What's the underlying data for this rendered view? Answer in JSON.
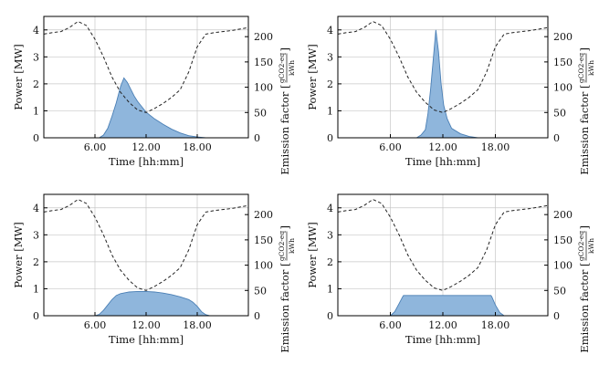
{
  "chart_data": [
    {
      "type": "area",
      "xlabel": "Time [hh:mm]",
      "ylabel": "Power [MW]",
      "y2label": "Emission factor",
      "y2unit_num": "gCO2-eq",
      "y2unit_den": "kWh",
      "xlim": [
        0,
        24
      ],
      "ylim": [
        0,
        4.5
      ],
      "y2lim": [
        0,
        240
      ],
      "xticks": [
        6,
        12,
        18
      ],
      "xticklabels": [
        "6.00",
        "12.00",
        "18.00"
      ],
      "yticks": [
        0,
        1,
        2,
        3,
        4
      ],
      "yticklabels": [
        "0",
        "1",
        "2",
        "3",
        "4"
      ],
      "y2ticks": [
        0,
        50,
        100,
        150,
        200
      ],
      "y2ticklabels": [
        "0",
        "50",
        "100",
        "150",
        "200"
      ],
      "series": [
        {
          "name": "Power",
          "x": [
            6.5,
            7,
            7.5,
            8,
            8.5,
            9,
            9.4,
            9.8,
            10.2,
            10.6,
            11,
            11.5,
            12,
            13,
            14,
            15,
            16,
            17,
            18,
            19
          ],
          "values": [
            0,
            0.1,
            0.35,
            0.8,
            1.3,
            1.9,
            2.22,
            2.05,
            1.8,
            1.55,
            1.35,
            1.15,
            0.95,
            0.7,
            0.5,
            0.32,
            0.18,
            0.08,
            0.03,
            0
          ]
        },
        {
          "name": "Emission factor",
          "x": [
            0,
            1,
            2,
            3,
            4,
            5,
            6,
            7,
            8,
            9,
            10,
            11,
            12,
            13,
            14,
            15,
            16,
            17,
            18,
            19,
            20,
            21,
            22,
            23,
            24
          ],
          "values": [
            205,
            208,
            210,
            218,
            230,
            222,
            195,
            160,
            120,
            90,
            70,
            55,
            50,
            58,
            68,
            80,
            95,
            130,
            180,
            205,
            208,
            210,
            212,
            215,
            218
          ]
        }
      ]
    },
    {
      "type": "area",
      "xlabel": "Time [hh:mm]",
      "ylabel": "Power [MW]",
      "y2label": "Emission factor",
      "y2unit_num": "gCO2-eq",
      "y2unit_den": "kWh",
      "xlim": [
        0,
        24
      ],
      "ylim": [
        0,
        4.5
      ],
      "y2lim": [
        0,
        240
      ],
      "xticks": [
        6,
        12,
        18
      ],
      "xticklabels": [
        "6.00",
        "12.00",
        "18.00"
      ],
      "yticks": [
        0,
        1,
        2,
        3,
        4
      ],
      "yticklabels": [
        "0",
        "1",
        "2",
        "3",
        "4"
      ],
      "y2ticks": [
        0,
        50,
        100,
        150,
        200
      ],
      "y2ticklabels": [
        "0",
        "50",
        "100",
        "150",
        "200"
      ],
      "series": [
        {
          "name": "Power",
          "x": [
            9,
            9.5,
            10,
            10.3,
            10.6,
            10.9,
            11.2,
            11.5,
            11.8,
            12.1,
            12.5,
            13,
            14,
            15,
            16
          ],
          "values": [
            0,
            0.1,
            0.3,
            0.9,
            1.8,
            2.9,
            4.0,
            3.2,
            2.0,
            1.2,
            0.7,
            0.35,
            0.15,
            0.05,
            0
          ]
        },
        {
          "name": "Emission factor",
          "x": [
            0,
            1,
            2,
            3,
            4,
            5,
            6,
            7,
            8,
            9,
            10,
            11,
            12,
            13,
            14,
            15,
            16,
            17,
            18,
            19,
            20,
            21,
            22,
            23,
            24
          ],
          "values": [
            205,
            208,
            210,
            218,
            230,
            222,
            195,
            160,
            120,
            90,
            70,
            55,
            50,
            58,
            68,
            80,
            95,
            130,
            180,
            205,
            208,
            210,
            212,
            215,
            218
          ]
        }
      ]
    },
    {
      "type": "area",
      "xlabel": "Time [hh:mm]",
      "ylabel": "Power [MW]",
      "y2label": "Emission factor",
      "y2unit_num": "gCO2-eq",
      "y2unit_den": "kWh",
      "xlim": [
        0,
        24
      ],
      "ylim": [
        0,
        4.5
      ],
      "y2lim": [
        0,
        240
      ],
      "xticks": [
        6,
        12,
        18
      ],
      "xticklabels": [
        "6.00",
        "12.00",
        "18.00"
      ],
      "yticks": [
        0,
        1,
        2,
        3,
        4
      ],
      "yticklabels": [
        "0",
        "1",
        "2",
        "3",
        "4"
      ],
      "y2ticks": [
        0,
        50,
        100,
        150,
        200
      ],
      "y2ticklabels": [
        "0",
        "50",
        "100",
        "150",
        "200"
      ],
      "series": [
        {
          "name": "Power",
          "x": [
            6,
            6.5,
            7,
            7.5,
            8,
            8.5,
            9,
            10,
            11,
            12,
            13,
            14,
            15,
            16,
            17,
            17.5,
            18,
            18.5,
            19,
            19.5
          ],
          "values": [
            0,
            0.05,
            0.2,
            0.4,
            0.6,
            0.75,
            0.82,
            0.88,
            0.9,
            0.9,
            0.88,
            0.84,
            0.78,
            0.7,
            0.6,
            0.5,
            0.35,
            0.15,
            0.04,
            0
          ]
        },
        {
          "name": "Emission factor",
          "x": [
            0,
            1,
            2,
            3,
            4,
            5,
            6,
            7,
            8,
            9,
            10,
            11,
            12,
            13,
            14,
            15,
            16,
            17,
            18,
            19,
            20,
            21,
            22,
            23,
            24
          ],
          "values": [
            205,
            208,
            210,
            218,
            230,
            222,
            195,
            160,
            120,
            90,
            70,
            55,
            50,
            58,
            68,
            80,
            95,
            130,
            180,
            205,
            208,
            210,
            212,
            215,
            218
          ]
        }
      ]
    },
    {
      "type": "area",
      "xlabel": "Time [hh:mm]",
      "ylabel": "Power [MW]",
      "y2label": "Emission factor",
      "y2unit_num": "gCO2-eq",
      "y2unit_den": "kWh",
      "xlim": [
        0,
        24
      ],
      "ylim": [
        0,
        4.5
      ],
      "y2lim": [
        0,
        240
      ],
      "xticks": [
        6,
        12,
        18
      ],
      "xticklabels": [
        "6.00",
        "12.00",
        "18.00"
      ],
      "yticks": [
        0,
        1,
        2,
        3,
        4
      ],
      "yticklabels": [
        "0",
        "1",
        "2",
        "3",
        "4"
      ],
      "y2ticks": [
        0,
        50,
        100,
        150,
        200
      ],
      "y2ticklabels": [
        "0",
        "50",
        "100",
        "150",
        "200"
      ],
      "series": [
        {
          "name": "Power",
          "x": [
            6,
            6.5,
            7,
            7.4,
            7.5,
            17.5,
            17.6,
            18,
            18.5,
            19
          ],
          "values": [
            0,
            0.15,
            0.45,
            0.7,
            0.75,
            0.75,
            0.7,
            0.4,
            0.12,
            0
          ]
        },
        {
          "name": "Emission factor",
          "x": [
            0,
            1,
            2,
            3,
            4,
            5,
            6,
            7,
            8,
            9,
            10,
            11,
            12,
            13,
            14,
            15,
            16,
            17,
            18,
            19,
            20,
            21,
            22,
            23,
            24
          ],
          "values": [
            205,
            208,
            210,
            218,
            230,
            222,
            195,
            160,
            120,
            90,
            70,
            55,
            50,
            58,
            68,
            80,
            95,
            130,
            180,
            205,
            208,
            210,
            212,
            215,
            218
          ]
        }
      ]
    }
  ]
}
